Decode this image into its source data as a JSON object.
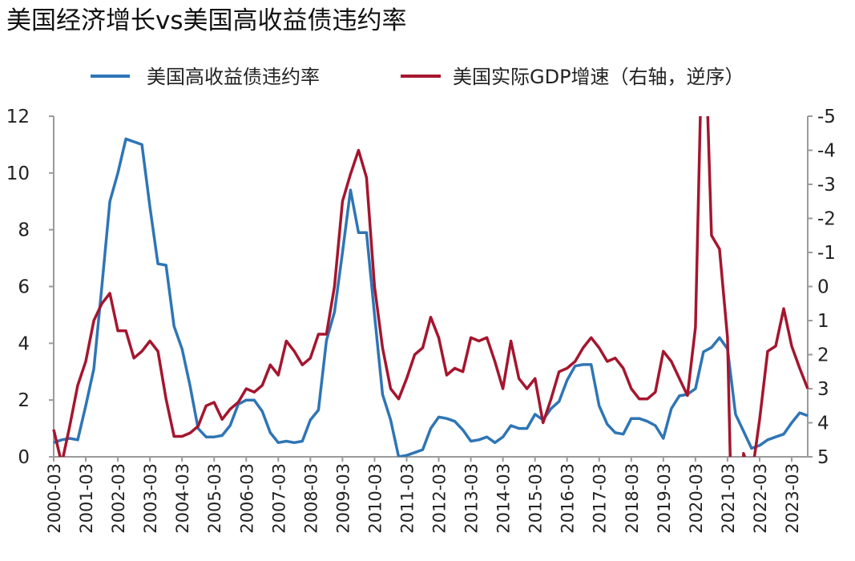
{
  "chart_data": {
    "type": "line",
    "title": "美国经济增长vs美国高收益债违约率",
    "legend_position": "top",
    "x_start": "2000-03",
    "x_frequency": "quarterly",
    "x_tick_labels": [
      "2000-03",
      "2001-03",
      "2002-03",
      "2003-03",
      "2004-03",
      "2005-03",
      "2006-03",
      "2007-03",
      "2008-03",
      "2009-03",
      "2010-03",
      "2011-03",
      "2012-03",
      "2013-03",
      "2014-03",
      "2015-03",
      "2016-03",
      "2017-03",
      "2018-03",
      "2019-03",
      "2020-03",
      "2021-03",
      "2022-03",
      "2023-03"
    ],
    "left_axis": {
      "range": [
        0,
        12
      ],
      "ticks": [
        0,
        2,
        4,
        6,
        8,
        10,
        12
      ]
    },
    "right_axis": {
      "range": [
        -5,
        5
      ],
      "inverted": true,
      "ticks": [
        -5,
        -4,
        -3,
        -2,
        -1,
        0,
        1,
        2,
        3,
        4,
        5
      ]
    },
    "grid": false,
    "series": [
      {
        "name": "美国高收益债违约率",
        "axis": "left",
        "color": "#2e75b6",
        "values": [
          0.5,
          0.6,
          0.65,
          0.6,
          1.8,
          3.1,
          6.0,
          9.0,
          10.0,
          11.2,
          11.1,
          11.0,
          8.8,
          6.8,
          6.75,
          4.6,
          3.8,
          2.5,
          1.0,
          0.7,
          0.7,
          0.75,
          1.1,
          1.85,
          2.0,
          2.0,
          1.6,
          0.85,
          0.5,
          0.55,
          0.5,
          0.55,
          1.3,
          1.65,
          4.1,
          5.1,
          7.2,
          9.4,
          7.9,
          7.9,
          5.0,
          2.2,
          1.3,
          0.0,
          0.05,
          0.15,
          0.25,
          1.0,
          1.4,
          1.35,
          1.25,
          0.95,
          0.55,
          0.6,
          0.7,
          0.5,
          0.7,
          1.1,
          1.0,
          1.0,
          1.5,
          1.3,
          1.7,
          1.95,
          2.7,
          3.2,
          3.25,
          3.25,
          1.8,
          1.15,
          0.85,
          0.8,
          1.35,
          1.35,
          1.25,
          1.1,
          0.65,
          1.7,
          2.15,
          2.2,
          2.4,
          3.7,
          3.85,
          4.2,
          3.8,
          1.5,
          0.9,
          0.3,
          0.4,
          0.6,
          0.7,
          0.8,
          1.2,
          1.55,
          1.45
        ]
      },
      {
        "name": "美国实际GDP增速（右轴，逆序）",
        "axis": "right",
        "color": "#a5152e",
        "values": [
          4.2,
          5.2,
          4.1,
          2.9,
          2.2,
          1.0,
          0.5,
          0.2,
          1.3,
          1.3,
          2.1,
          1.9,
          1.6,
          1.9,
          3.3,
          4.4,
          4.4,
          4.3,
          4.1,
          3.5,
          3.4,
          3.9,
          3.6,
          3.4,
          3.0,
          3.1,
          2.9,
          2.3,
          2.6,
          1.6,
          1.9,
          2.3,
          2.1,
          1.4,
          1.4,
          0.0,
          -2.5,
          -3.3,
          -4.0,
          -3.2,
          0.0,
          1.8,
          3.0,
          3.3,
          2.7,
          2.0,
          1.8,
          0.9,
          1.5,
          2.6,
          2.4,
          2.5,
          1.5,
          1.6,
          1.5,
          2.2,
          3.0,
          1.6,
          2.7,
          3.0,
          2.7,
          4.0,
          3.3,
          2.5,
          2.4,
          2.2,
          1.8,
          1.5,
          1.8,
          2.2,
          2.1,
          2.4,
          3.0,
          3.3,
          3.3,
          3.1,
          1.9,
          2.2,
          2.7,
          3.2,
          1.2,
          -9.0,
          -1.5,
          -1.1,
          1.5,
          12.0,
          4.9,
          5.6,
          3.9,
          1.9,
          1.75,
          0.65,
          1.75,
          2.4,
          3.0
        ]
      }
    ]
  }
}
